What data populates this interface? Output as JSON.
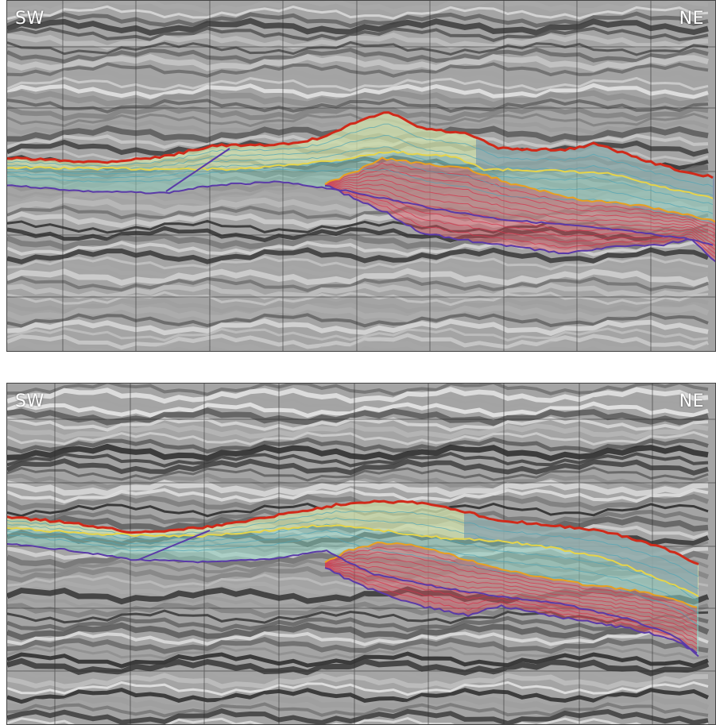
{
  "panels": [
    {
      "left_label": "SW",
      "right_label": "NE"
    },
    {
      "left_label": "SW",
      "right_label": "NE"
    }
  ],
  "colors": {
    "top_horizon": "#d02a1a",
    "base_horizon": "#5a3aa8",
    "yellow_horizon": "#e6d44a",
    "cyan_fill": "#8fd0c0",
    "blue_fill": "#5b7fb0",
    "red_fill": "#d8505c"
  }
}
